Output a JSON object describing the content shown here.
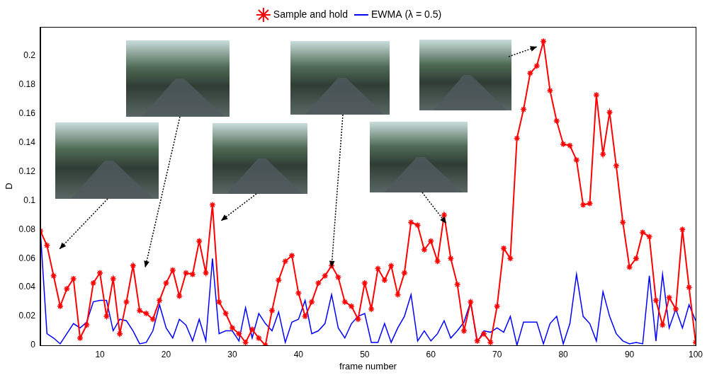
{
  "chart_data": {
    "type": "line",
    "x": [
      1,
      2,
      3,
      4,
      5,
      6,
      7,
      8,
      9,
      10,
      11,
      12,
      13,
      14,
      15,
      16,
      17,
      18,
      19,
      20,
      21,
      22,
      23,
      24,
      25,
      26,
      27,
      28,
      29,
      30,
      31,
      32,
      33,
      34,
      35,
      36,
      37,
      38,
      39,
      40,
      41,
      42,
      43,
      44,
      45,
      46,
      47,
      48,
      49,
      50,
      51,
      52,
      53,
      54,
      55,
      56,
      57,
      58,
      59,
      60,
      61,
      62,
      63,
      64,
      65,
      66,
      67,
      68,
      69,
      70,
      71,
      72,
      73,
      74,
      75,
      76,
      77,
      78,
      79,
      80,
      81,
      82,
      83,
      84,
      85,
      86,
      87,
      88,
      89,
      90,
      91,
      92,
      93,
      94,
      95,
      96,
      97,
      98,
      99,
      100
    ],
    "series": [
      {
        "name": "Sample and hold",
        "color": "#ff0000",
        "marker": "star",
        "values": [
          0.079,
          0.069,
          0.048,
          0.027,
          0.039,
          0.046,
          0.005,
          0.014,
          0.043,
          0.05,
          0.02,
          0.046,
          0.008,
          0.03,
          0.055,
          0.024,
          0.022,
          0.018,
          0.031,
          0.043,
          0.052,
          0.034,
          0.05,
          0.049,
          0.072,
          0.05,
          0.097,
          0.03,
          0.022,
          0.012,
          0.008,
          0.002,
          0.011,
          0.005,
          0.0,
          0.024,
          0.045,
          0.058,
          0.062,
          0.036,
          0.02,
          0.03,
          0.043,
          0.048,
          0.055,
          0.047,
          0.03,
          0.027,
          0.018,
          0.043,
          0.025,
          0.053,
          0.045,
          0.055,
          0.035,
          0.05,
          0.085,
          0.083,
          0.066,
          0.072,
          0.058,
          0.09,
          0.06,
          0.042,
          0.01,
          0.03,
          0.003,
          0.008,
          0.002,
          0.027,
          0.067,
          0.06,
          0.143,
          0.163,
          0.188,
          0.193,
          0.21,
          0.176,
          0.155,
          0.139,
          0.138,
          0.128,
          0.097,
          0.098,
          0.173,
          0.132,
          0.161,
          0.124,
          0.085,
          0.054,
          0.06,
          0.078,
          0.075,
          0.031,
          0.014,
          0.033,
          0.025,
          0.08,
          0.04,
          0.002
        ]
      },
      {
        "name": "EWMA (λ = 0.5)",
        "color": "#0000ff",
        "marker": "none",
        "values": [
          0.079,
          0.008,
          0.005,
          0.001,
          0.008,
          0.015,
          0.012,
          0.016,
          0.03,
          0.031,
          0.031,
          0.01,
          0.018,
          0.017,
          0.01,
          0.001,
          0.002,
          0.01,
          0.028,
          0.012,
          0.005,
          0.018,
          0.014,
          0.003,
          0.018,
          0.003,
          0.06,
          0.008,
          0.01,
          0.01,
          0.003,
          0.026,
          0.005,
          0.022,
          0.015,
          0.01,
          0.023,
          0.002,
          0.016,
          0.018,
          0.031,
          0.008,
          0.01,
          0.015,
          0.035,
          0.012,
          0.005,
          0.015,
          0.02,
          0.022,
          0.002,
          0.002,
          0.015,
          0.002,
          0.012,
          0.02,
          0.035,
          0.003,
          0.01,
          0.003,
          0.008,
          0.017,
          0.005,
          0.01,
          0.016,
          0.03,
          0.002,
          0.01,
          0.009,
          0.012,
          0.009,
          0.02,
          0.0,
          0.016,
          0.016,
          0.016,
          0.001,
          0.015,
          0.02,
          0.001,
          0.015,
          0.049,
          0.02,
          0.015,
          0.003,
          0.037,
          0.02,
          0.008,
          0.003,
          0.001,
          0.002,
          0.001,
          0.048,
          0.003,
          0.049,
          0.012,
          0.025,
          0.012,
          0.028,
          0.017
        ]
      }
    ],
    "x_label": "frame number",
    "y_label": "D",
    "xlim": [
      1,
      100
    ],
    "xticks": [
      10,
      20,
      30,
      40,
      50,
      60,
      70,
      80,
      90,
      100
    ],
    "ylim": [
      0,
      0.22
    ],
    "yticks": [
      0,
      0.02,
      0.04,
      0.06,
      0.08,
      0.1,
      0.12,
      0.14,
      0.16,
      0.18,
      0.2
    ],
    "grid": false,
    "legend": "top"
  }
}
